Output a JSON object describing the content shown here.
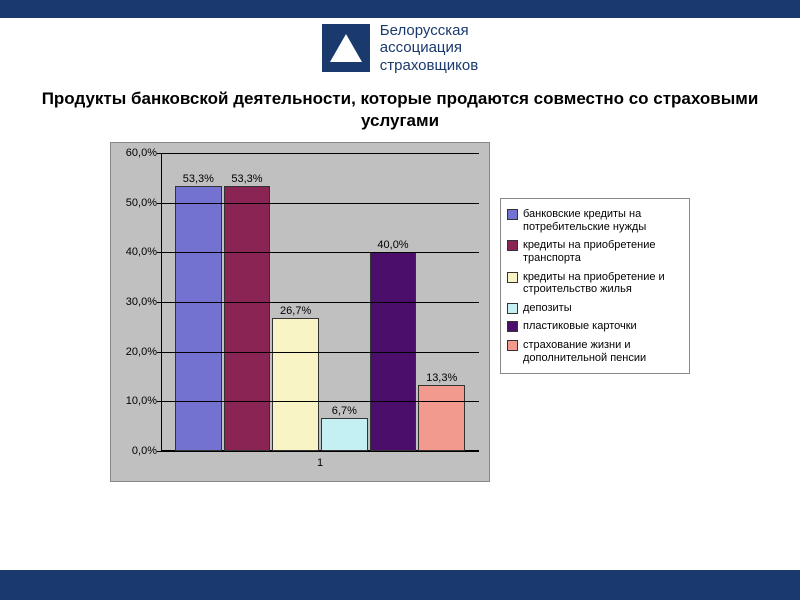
{
  "header": {
    "org_line1": "Белорусская",
    "org_line2": "ассоциация",
    "org_line3": "страховщиков"
  },
  "title": "Продукты банковской деятельности, которые продаются совместно со страховыми услугами",
  "chart": {
    "type": "bar",
    "background_color": "#c0c0c0",
    "grid_color": "#000000",
    "ymax": 60.0,
    "ymin": 0.0,
    "ytick_step": 10.0,
    "y_format_suffix": "%",
    "x_category_label": "1",
    "bars": [
      {
        "value": 53.3,
        "label": "53,3%",
        "color": "#7472d0",
        "legend": "банковские кредиты на потребительские нужды"
      },
      {
        "value": 53.3,
        "label": "53,3%",
        "color": "#8a2455",
        "legend": "кредиты на приобретение транспорта"
      },
      {
        "value": 26.7,
        "label": "26,7%",
        "color": "#f8f4c6",
        "legend": "кредиты на приобретение и строительство жилья"
      },
      {
        "value": 6.7,
        "label": "6,7%",
        "color": "#c4f0f4",
        "legend": "депозиты"
      },
      {
        "value": 40.0,
        "label": "40,0%",
        "color": "#4b0f6b",
        "legend": "пластиковые карточки"
      },
      {
        "value": 13.3,
        "label": "13,3%",
        "color": "#f29a8e",
        "legend": "страхование жизни и дополнительной пенсии"
      }
    ],
    "label_fontsize": 11,
    "bar_border_color": "#333333"
  },
  "colors": {
    "brand": "#1a3a6e",
    "page_bg": "#ffffff"
  }
}
